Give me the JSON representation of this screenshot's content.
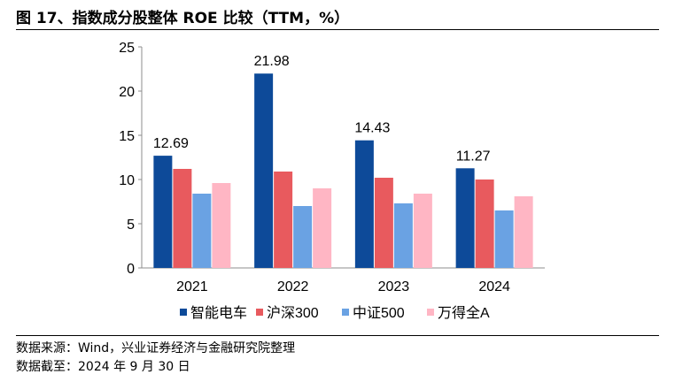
{
  "title": "图 17、指数成分股整体 ROE 比较（TTM，%）",
  "source": "数据来源：Wind，兴业证券经济与金融研究院整理",
  "date_note": "数据截至：2024 年 9 月 30 日",
  "chart_data": {
    "type": "bar",
    "categories": [
      "2021",
      "2022",
      "2023",
      "2024"
    ],
    "series": [
      {
        "name": "智能电车",
        "color": "#0D4A99",
        "values": [
          12.69,
          21.98,
          14.43,
          11.27
        ]
      },
      {
        "name": "沪深300",
        "color": "#E85A5E",
        "values": [
          11.2,
          10.9,
          10.2,
          10.0
        ]
      },
      {
        "name": "中证500",
        "color": "#6AA2E3",
        "values": [
          8.4,
          7.0,
          7.3,
          6.5
        ]
      },
      {
        "name": "万得全A",
        "color": "#FFB6C4",
        "values": [
          9.6,
          9.0,
          8.4,
          8.1
        ]
      }
    ],
    "data_labels": {
      "series": "智能电车",
      "values": [
        "12.69",
        "21.98",
        "14.43",
        "11.27"
      ]
    },
    "ylim": [
      0,
      25
    ],
    "yticks": [
      0,
      5,
      10,
      15,
      20,
      25
    ],
    "grid": false,
    "legend_position": "bottom"
  }
}
